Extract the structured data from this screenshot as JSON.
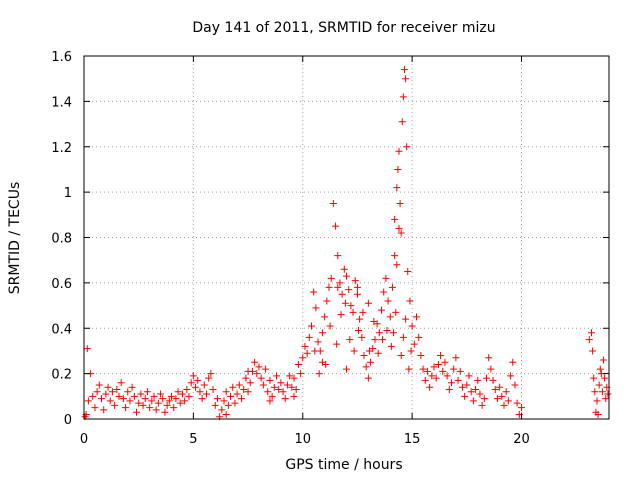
{
  "chart_data": {
    "type": "scatter",
    "title": "Day 141 of 2011, SRMTID for receiver mizu",
    "xlabel": "GPS time / hours",
    "ylabel": "SRMTID / TECUs",
    "xlim": [
      0,
      24
    ],
    "ylim": [
      0,
      1.6
    ],
    "xticks": [
      0,
      5,
      10,
      15,
      20
    ],
    "xtick_labels": [
      "0",
      "5",
      "10",
      "15",
      "20"
    ],
    "yticks": [
      0,
      0.2,
      0.4,
      0.6,
      0.8,
      1.0,
      1.2,
      1.4,
      1.6
    ],
    "ytick_labels": [
      "0",
      "0.2",
      "0.4",
      "0.6",
      "0.8",
      "1",
      "1.2",
      "1.4",
      "1.6"
    ],
    "grid": true,
    "marker": "+",
    "color": "#ff0000",
    "series": [
      {
        "name": "SRMTID",
        "points": [
          [
            0.05,
            0.01
          ],
          [
            0.1,
            0.02
          ],
          [
            0.15,
            0.31
          ],
          [
            0.2,
            0.08
          ],
          [
            0.3,
            0.2
          ],
          [
            0.4,
            0.1
          ],
          [
            0.5,
            0.05
          ],
          [
            0.6,
            0.12
          ],
          [
            0.7,
            0.15
          ],
          [
            0.8,
            0.09
          ],
          [
            0.9,
            0.04
          ],
          [
            1.0,
            0.11
          ],
          [
            1.1,
            0.14
          ],
          [
            1.2,
            0.08
          ],
          [
            1.3,
            0.12
          ],
          [
            1.4,
            0.06
          ],
          [
            1.5,
            0.13
          ],
          [
            1.6,
            0.1
          ],
          [
            1.7,
            0.16
          ],
          [
            1.8,
            0.09
          ],
          [
            1.9,
            0.05
          ],
          [
            2.0,
            0.12
          ],
          [
            2.1,
            0.08
          ],
          [
            2.2,
            0.14
          ],
          [
            2.3,
            0.1
          ],
          [
            2.4,
            0.03
          ],
          [
            2.5,
            0.07
          ],
          [
            2.6,
            0.11
          ],
          [
            2.7,
            0.06
          ],
          [
            2.8,
            0.09
          ],
          [
            2.9,
            0.12
          ],
          [
            3.0,
            0.05
          ],
          [
            3.1,
            0.08
          ],
          [
            3.2,
            0.1
          ],
          [
            3.3,
            0.04
          ],
          [
            3.4,
            0.07
          ],
          [
            3.5,
            0.11
          ],
          [
            3.6,
            0.09
          ],
          [
            3.7,
            0.03
          ],
          [
            3.8,
            0.06
          ],
          [
            3.9,
            0.08
          ],
          [
            4.0,
            0.1
          ],
          [
            4.1,
            0.05
          ],
          [
            4.2,
            0.09
          ],
          [
            4.3,
            0.12
          ],
          [
            4.4,
            0.07
          ],
          [
            4.5,
            0.11
          ],
          [
            4.6,
            0.08
          ],
          [
            4.7,
            0.13
          ],
          [
            4.8,
            0.1
          ],
          [
            4.9,
            0.16
          ],
          [
            5.0,
            0.19
          ],
          [
            5.1,
            0.14
          ],
          [
            5.2,
            0.17
          ],
          [
            5.3,
            0.12
          ],
          [
            5.4,
            0.09
          ],
          [
            5.5,
            0.15
          ],
          [
            5.6,
            0.11
          ],
          [
            5.7,
            0.18
          ],
          [
            5.8,
            0.2
          ],
          [
            5.9,
            0.13
          ],
          [
            6.0,
            0.06
          ],
          [
            6.1,
            0.09
          ],
          [
            6.2,
            0.01
          ],
          [
            6.3,
            0.04
          ],
          [
            6.4,
            0.08
          ],
          [
            6.5,
            0.12
          ],
          [
            6.6,
            0.06
          ],
          [
            6.7,
            0.1
          ],
          [
            6.8,
            0.14
          ],
          [
            6.9,
            0.07
          ],
          [
            7.0,
            0.11
          ],
          [
            7.1,
            0.15
          ],
          [
            7.2,
            0.09
          ],
          [
            7.3,
            0.13
          ],
          [
            7.4,
            0.18
          ],
          [
            7.5,
            0.12
          ],
          [
            7.6,
            0.16
          ],
          [
            7.7,
            0.21
          ],
          [
            7.8,
            0.25
          ],
          [
            7.9,
            0.2
          ],
          [
            8.0,
            0.23
          ],
          [
            8.1,
            0.18
          ],
          [
            8.2,
            0.15
          ],
          [
            8.3,
            0.22
          ],
          [
            8.4,
            0.12
          ],
          [
            8.5,
            0.17
          ],
          [
            8.6,
            0.1
          ],
          [
            8.7,
            0.14
          ],
          [
            8.8,
            0.19
          ],
          [
            8.9,
            0.13
          ],
          [
            9.0,
            0.16
          ],
          [
            9.1,
            0.12
          ],
          [
            9.2,
            0.09
          ],
          [
            9.3,
            0.15
          ],
          [
            9.4,
            0.19
          ],
          [
            9.5,
            0.14
          ],
          [
            9.6,
            0.18
          ],
          [
            9.7,
            0.13
          ],
          [
            9.8,
            0.24
          ],
          [
            9.9,
            0.2
          ],
          [
            10.0,
            0.27
          ],
          [
            10.1,
            0.32
          ],
          [
            10.2,
            0.29
          ],
          [
            10.3,
            0.36
          ],
          [
            10.4,
            0.41
          ],
          [
            10.5,
            0.56
          ],
          [
            10.6,
            0.49
          ],
          [
            10.7,
            0.34
          ],
          [
            10.8,
            0.3
          ],
          [
            10.9,
            0.38
          ],
          [
            11.0,
            0.45
          ],
          [
            11.1,
            0.52
          ],
          [
            11.2,
            0.58
          ],
          [
            11.3,
            0.62
          ],
          [
            11.4,
            0.95
          ],
          [
            11.5,
            0.85
          ],
          [
            11.6,
            0.72
          ],
          [
            11.7,
            0.6
          ],
          [
            11.8,
            0.55
          ],
          [
            11.9,
            0.66
          ],
          [
            12.0,
            0.63
          ],
          [
            12.1,
            0.57
          ],
          [
            12.2,
            0.5
          ],
          [
            12.3,
            0.47
          ],
          [
            12.4,
            0.61
          ],
          [
            12.5,
            0.55
          ],
          [
            12.6,
            0.44
          ],
          [
            12.7,
            0.36
          ],
          [
            12.8,
            0.28
          ],
          [
            12.9,
            0.23
          ],
          [
            13.0,
            0.18
          ],
          [
            13.1,
            0.25
          ],
          [
            13.2,
            0.31
          ],
          [
            13.3,
            0.35
          ],
          [
            13.4,
            0.42
          ],
          [
            13.5,
            0.38
          ],
          [
            13.6,
            0.48
          ],
          [
            13.7,
            0.56
          ],
          [
            13.8,
            0.62
          ],
          [
            13.9,
            0.52
          ],
          [
            14.0,
            0.45
          ],
          [
            14.1,
            0.58
          ],
          [
            14.2,
            0.72
          ],
          [
            14.3,
            1.02
          ],
          [
            14.35,
            1.1
          ],
          [
            14.4,
            1.18
          ],
          [
            14.45,
            0.95
          ],
          [
            14.5,
            0.82
          ],
          [
            14.55,
            1.31
          ],
          [
            14.6,
            1.42
          ],
          [
            14.65,
            1.54
          ],
          [
            14.7,
            1.5
          ],
          [
            14.75,
            1.2
          ],
          [
            14.8,
            0.65
          ],
          [
            14.9,
            0.52
          ],
          [
            15.0,
            0.41
          ],
          [
            15.1,
            0.33
          ],
          [
            15.2,
            0.45
          ],
          [
            15.3,
            0.36
          ],
          [
            15.4,
            0.28
          ],
          [
            15.5,
            0.22
          ],
          [
            15.6,
            0.17
          ],
          [
            15.7,
            0.21
          ],
          [
            15.8,
            0.14
          ],
          [
            15.9,
            0.19
          ],
          [
            16.0,
            0.23
          ],
          [
            16.1,
            0.18
          ],
          [
            16.2,
            0.24
          ],
          [
            16.3,
            0.28
          ],
          [
            16.4,
            0.21
          ],
          [
            16.5,
            0.25
          ],
          [
            16.6,
            0.19
          ],
          [
            16.7,
            0.13
          ],
          [
            16.8,
            0.16
          ],
          [
            16.9,
            0.22
          ],
          [
            17.0,
            0.27
          ],
          [
            17.1,
            0.17
          ],
          [
            17.2,
            0.21
          ],
          [
            17.3,
            0.14
          ],
          [
            17.4,
            0.1
          ],
          [
            17.5,
            0.15
          ],
          [
            17.6,
            0.19
          ],
          [
            17.7,
            0.12
          ],
          [
            17.8,
            0.08
          ],
          [
            17.9,
            0.13
          ],
          [
            18.0,
            0.17
          ],
          [
            18.1,
            0.11
          ],
          [
            18.2,
            0.06
          ],
          [
            18.3,
            0.09
          ],
          [
            18.4,
            0.18
          ],
          [
            18.5,
            0.27
          ],
          [
            18.6,
            0.22
          ],
          [
            18.7,
            0.17
          ],
          [
            18.8,
            0.13
          ],
          [
            18.9,
            0.09
          ],
          [
            19.0,
            0.14
          ],
          [
            19.1,
            0.1
          ],
          [
            19.2,
            0.06
          ],
          [
            19.3,
            0.12
          ],
          [
            19.4,
            0.08
          ],
          [
            19.5,
            0.19
          ],
          [
            19.6,
            0.25
          ],
          [
            19.7,
            0.15
          ],
          [
            19.8,
            0.07
          ],
          [
            19.9,
            0.02
          ],
          [
            20.0,
            0.05
          ],
          [
            23.1,
            0.35
          ],
          [
            23.2,
            0.38
          ],
          [
            23.25,
            0.3
          ],
          [
            23.3,
            0.18
          ],
          [
            23.35,
            0.12
          ],
          [
            23.4,
            0.03
          ],
          [
            23.45,
            0.08
          ],
          [
            23.5,
            0.02
          ],
          [
            23.55,
            0.15
          ],
          [
            23.6,
            0.22
          ],
          [
            23.65,
            0.2
          ],
          [
            23.7,
            0.12
          ],
          [
            23.75,
            0.26
          ],
          [
            23.8,
            0.18
          ],
          [
            23.85,
            0.09
          ],
          [
            23.9,
            0.14
          ],
          [
            23.95,
            0.11
          ],
          [
            10.55,
            0.3
          ],
          [
            10.75,
            0.2
          ],
          [
            11.05,
            0.24
          ],
          [
            11.25,
            0.41
          ],
          [
            11.55,
            0.33
          ],
          [
            11.75,
            0.46
          ],
          [
            11.95,
            0.51
          ],
          [
            12.15,
            0.35
          ],
          [
            12.35,
            0.3
          ],
          [
            12.55,
            0.39
          ],
          [
            12.75,
            0.47
          ],
          [
            13.05,
            0.3
          ],
          [
            13.25,
            0.43
          ],
          [
            13.45,
            0.29
          ],
          [
            13.65,
            0.35
          ],
          [
            13.85,
            0.39
          ],
          [
            14.05,
            0.32
          ],
          [
            14.15,
            0.38
          ],
          [
            14.25,
            0.47
          ],
          [
            14.5,
            0.28
          ],
          [
            14.6,
            0.36
          ],
          [
            14.7,
            0.44
          ],
          [
            14.85,
            0.22
          ],
          [
            14.95,
            0.3
          ],
          [
            12.0,
            0.22
          ],
          [
            13.0,
            0.51
          ],
          [
            12.5,
            0.58
          ],
          [
            11.6,
            0.58
          ],
          [
            14.2,
            0.88
          ],
          [
            14.4,
            0.84
          ],
          [
            14.3,
            0.68
          ],
          [
            10.9,
            0.25
          ],
          [
            9.6,
            0.1
          ],
          [
            8.5,
            0.08
          ],
          [
            7.5,
            0.21
          ],
          [
            6.5,
            0.02
          ]
        ]
      }
    ]
  }
}
